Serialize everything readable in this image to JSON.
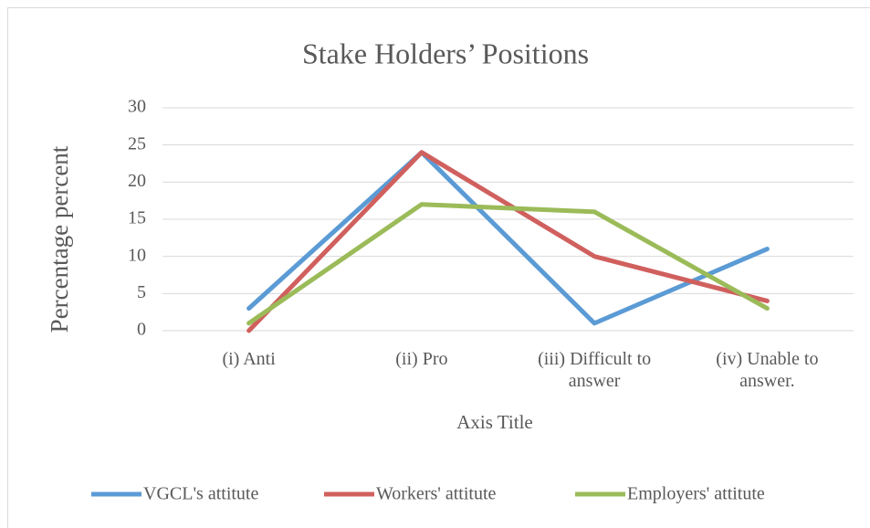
{
  "chart_data": {
    "type": "line",
    "title": "Stake Holders’ Positions",
    "x_label": "Axis Title",
    "y_label": "Percentage  percent",
    "categories": [
      "(i) Anti",
      "(ii) Pro",
      "(iii) Difficult to answer",
      "(iv) Unable to answer."
    ],
    "series": [
      {
        "name": "VGCL's attitute",
        "color": "#5b9bd5",
        "values": [
          3,
          24,
          1,
          11
        ]
      },
      {
        "name": "Workers' attitute",
        "color": "#d0605e",
        "values": [
          0,
          24,
          10,
          4
        ]
      },
      {
        "name": "Employers' attitute",
        "color": "#9bbb59",
        "values": [
          1,
          17,
          16,
          3
        ]
      }
    ],
    "ylim": [
      0,
      30
    ],
    "yticks": [
      0,
      5,
      10,
      15,
      20,
      25,
      30
    ],
    "grid": true,
    "legend": "bottom"
  }
}
